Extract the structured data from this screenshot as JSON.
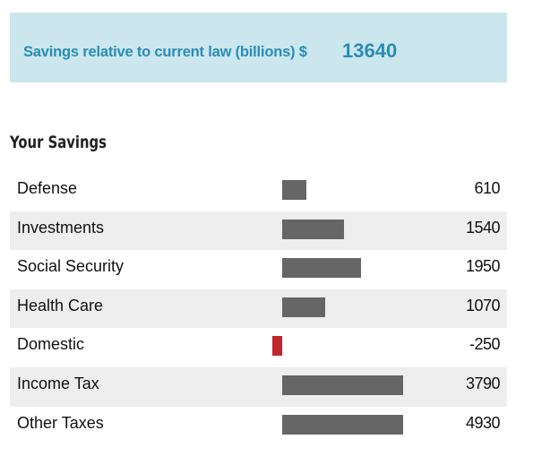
{
  "banner": {
    "label": "Savings relative to current law (billions) $",
    "value": "13640"
  },
  "section_title": "Your Savings",
  "colors": {
    "positive": "#666666",
    "negative": "#c0272d",
    "banner_bg": "#cce6ee",
    "banner_text": "#2a8db5"
  },
  "chart_data": {
    "type": "bar",
    "orientation": "horizontal",
    "title": "Your Savings",
    "categories": [
      "Defense",
      "Investments",
      "Social Security",
      "Health Care",
      "Domestic",
      "Income Tax",
      "Other Taxes"
    ],
    "values": [
      610,
      1540,
      1950,
      1070,
      -250,
      3790,
      4930
    ],
    "value_labels": [
      "610",
      "1540",
      "1950",
      "1070",
      "-250",
      "3790",
      "4930"
    ],
    "bar_cap": 3000,
    "xlabel": "",
    "ylabel": ""
  }
}
